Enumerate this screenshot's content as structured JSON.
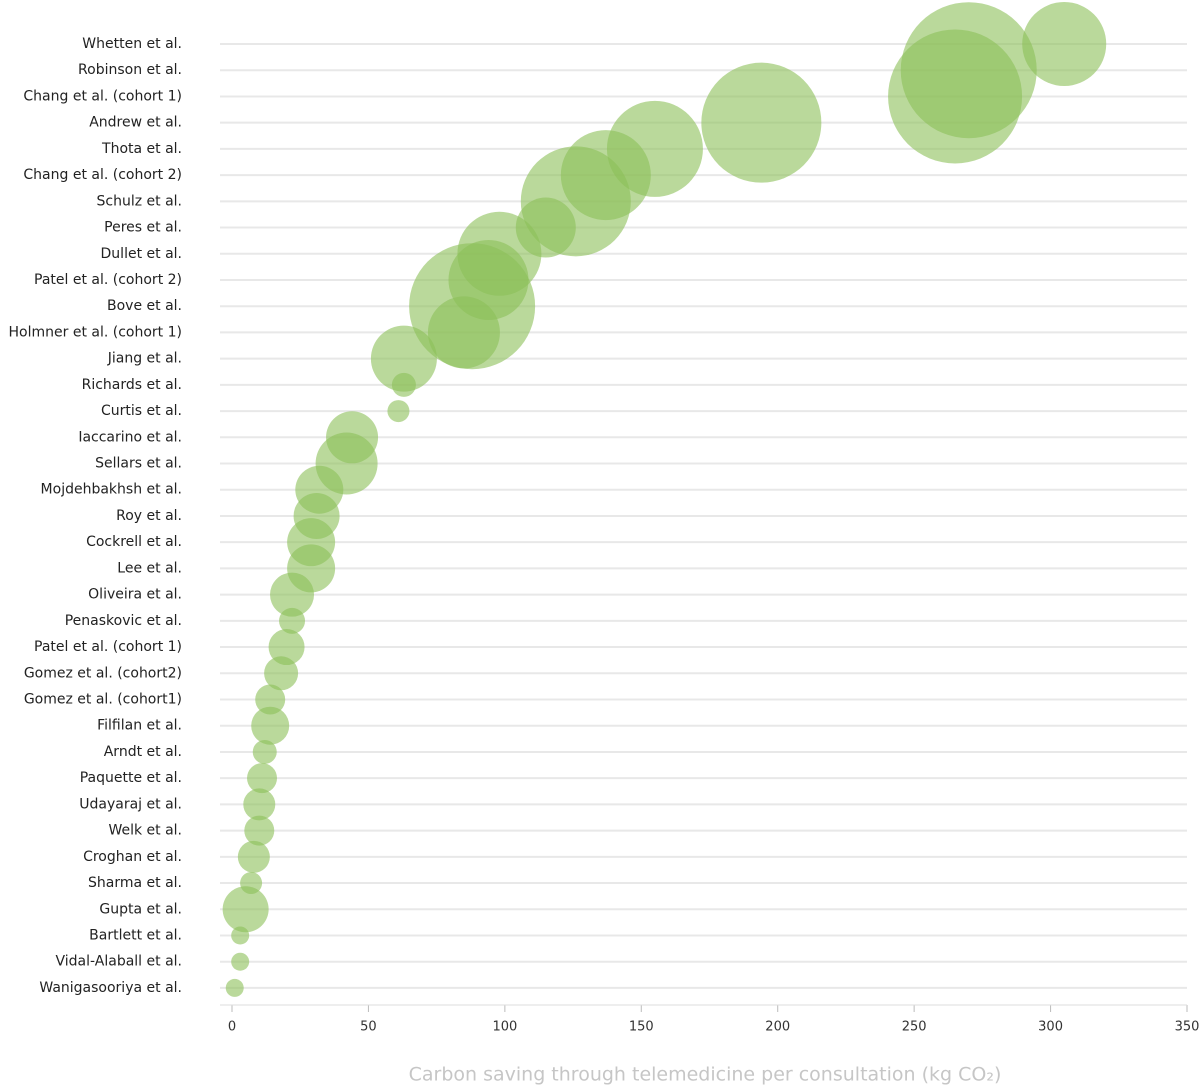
{
  "chart_data": {
    "type": "bubble",
    "xlabel": "Carbon saving through telemedicine per consultation (kg CO₂)",
    "categories": [
      "Whetten et al.",
      "Robinson et al.",
      "Chang et al. (cohort 1)",
      "Andrew et al.",
      "Thota et al.",
      "Chang et al. (cohort 2)",
      "Schulz et al.",
      "Peres et al.",
      "Dullet et al.",
      "Patel et al. (cohort 2)",
      "Bove et al.",
      "Holmner et al. (cohort 1)",
      "Jiang et al.",
      "Richards et al.",
      "Curtis et al.",
      "Iaccarino et al.",
      "Sellars et al.",
      "Mojdehbakhsh et al.",
      "Roy et al.",
      "Cockrell et al.",
      "Lee et al.",
      "Oliveira et al.",
      "Penaskovic et al.",
      "Patel et al. (cohort 1)",
      "Gomez et al. (cohort2)",
      "Gomez et al. (cohort1)",
      "Filfilan et al.",
      "Arndt et al.",
      "Paquette et al.",
      "Udayaraj et al.",
      "Welk et al.",
      "Croghan et al.",
      "Sharma et al.",
      "Gupta et al.",
      "Bartlett et al.",
      "Vidal-Alaball et al.",
      "Wanigasooriya et al."
    ],
    "series": [
      {
        "color": "#8cbf58",
        "values": [
          305,
          270,
          265,
          194,
          155,
          137,
          126,
          115,
          98,
          94,
          88,
          85,
          63,
          63,
          61,
          44,
          42,
          32,
          31,
          29,
          29,
          22,
          22,
          20,
          18,
          14,
          14,
          12,
          11,
          10,
          10,
          8,
          7,
          5,
          3,
          3,
          1
        ],
        "sizes": [
          42,
          68,
          67,
          60,
          48,
          45,
          55,
          30,
          42,
          40,
          63,
          36,
          33,
          12,
          11,
          26,
          31,
          24,
          23,
          24,
          24,
          22,
          13,
          18,
          17,
          15,
          19,
          12,
          15,
          16,
          15,
          16,
          11,
          23,
          9,
          9,
          9
        ]
      }
    ],
    "xlim": [
      0,
      350
    ],
    "xticks": [
      0,
      50,
      100,
      150,
      200,
      250,
      300,
      350
    ],
    "grid": true
  }
}
